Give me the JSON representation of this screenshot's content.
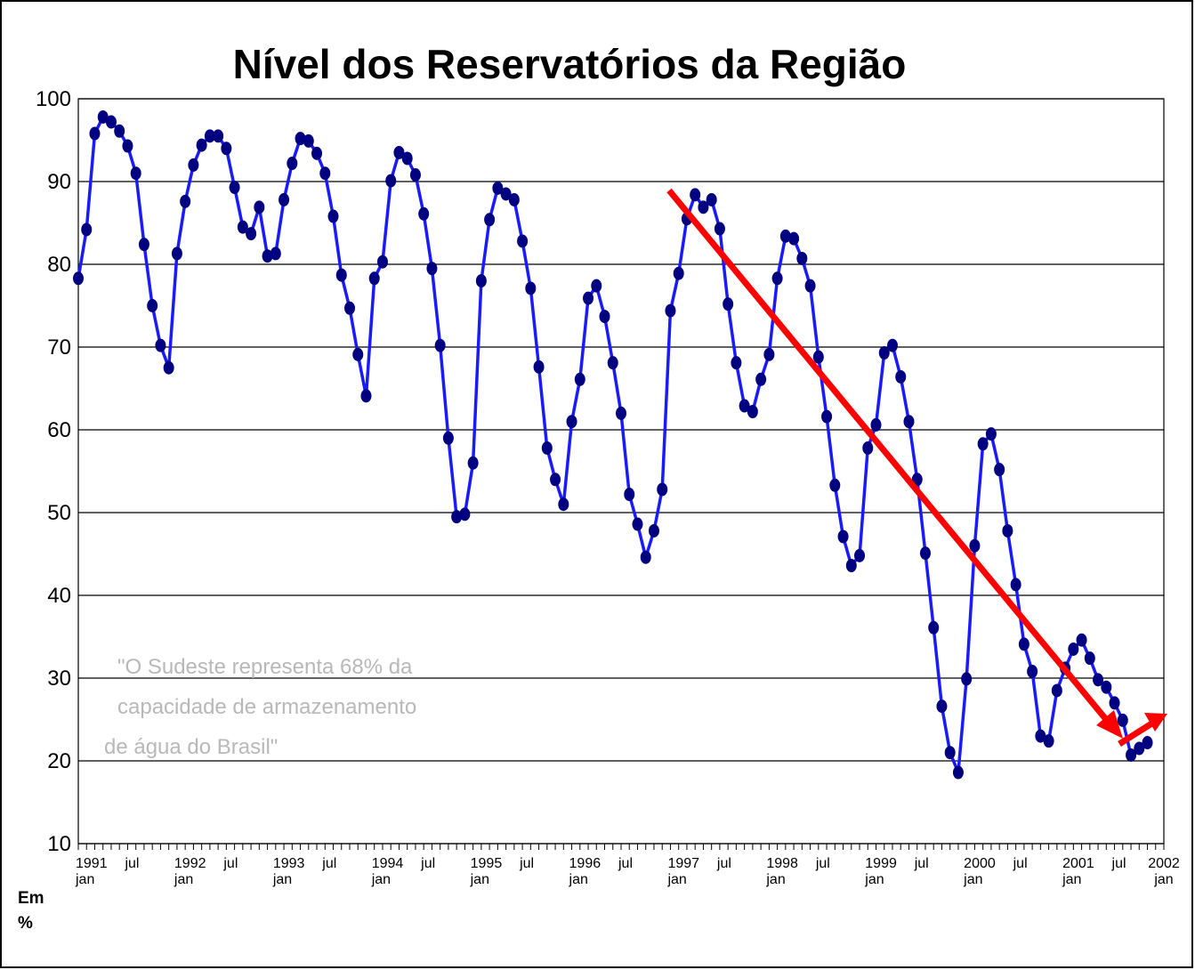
{
  "chart_data": {
    "type": "line",
    "title": "Nível dos Reservatórios da Região",
    "y_axis_label": "Em %",
    "annotation": [
      "\"O Sudeste representa 68% da",
      "capacidade de armazenamento",
      "de água do Brasil\""
    ],
    "categories": [
      "1991 jan",
      null,
      null,
      null,
      null,
      null,
      "jul",
      null,
      null,
      null,
      null,
      null,
      "1992 jan",
      null,
      null,
      null,
      null,
      null,
      "jul",
      null,
      null,
      null,
      null,
      null,
      "1993 jan",
      null,
      null,
      null,
      null,
      null,
      "jul",
      null,
      null,
      null,
      null,
      null,
      "1994 jan",
      null,
      null,
      null,
      null,
      null,
      "jul",
      null,
      null,
      null,
      null,
      null,
      "1995 jan",
      null,
      null,
      null,
      null,
      null,
      "jul",
      null,
      null,
      null,
      null,
      null,
      "1996 jan",
      null,
      null,
      null,
      null,
      null,
      "jul",
      null,
      null,
      null,
      null,
      null,
      "1997 jan",
      null,
      null,
      null,
      null,
      null,
      "jul",
      null,
      null,
      null,
      null,
      null,
      "1998 jan",
      null,
      null,
      null,
      null,
      null,
      "jul",
      null,
      null,
      null,
      null,
      null,
      "1999 jan",
      null,
      null,
      null,
      null,
      null,
      "jul",
      null,
      null,
      null,
      null,
      null,
      "2000 jan",
      null,
      null,
      null,
      null,
      null,
      "jul",
      null,
      null,
      null,
      null,
      null,
      "2001 jan",
      null,
      null,
      null,
      null,
      null,
      "jul",
      null,
      null,
      null,
      null,
      null,
      "2002 jan"
    ],
    "series": [
      {
        "name": "Nível",
        "color": "#1a1aff",
        "marker_color": "#000080",
        "values": [
          78.3,
          84.2,
          95.8,
          97.8,
          97.2,
          96.1,
          94.3,
          91.0,
          82.4,
          75.0,
          70.2,
          67.5,
          81.3,
          87.6,
          92.0,
          94.4,
          95.5,
          95.5,
          94.0,
          89.3,
          84.5,
          83.7,
          86.9,
          81.0,
          81.3,
          87.8,
          92.2,
          95.2,
          94.9,
          93.4,
          91.0,
          85.8,
          78.7,
          74.7,
          69.1,
          64.1,
          78.3,
          80.3,
          90.1,
          93.5,
          92.8,
          90.8,
          86.1,
          79.5,
          70.2,
          59.0,
          49.5,
          49.8,
          56.0,
          78.0,
          85.4,
          89.2,
          88.5,
          87.8,
          82.8,
          77.1,
          67.6,
          57.8,
          54.0,
          51.0,
          61.0,
          66.1,
          75.9,
          77.4,
          73.7,
          68.1,
          62.0,
          52.2,
          48.6,
          44.6,
          47.8,
          52.8,
          74.4,
          78.9,
          85.5,
          88.4,
          86.9,
          87.8,
          84.3,
          75.2,
          68.1,
          62.9,
          62.2,
          66.1,
          69.1,
          78.3,
          83.4,
          83.1,
          80.7,
          77.4,
          68.8,
          61.6,
          53.3,
          47.1,
          43.6,
          44.8,
          57.8,
          60.6,
          69.3,
          70.2,
          66.4,
          61.0,
          54.0,
          45.1,
          36.1,
          26.6,
          21.0,
          18.6,
          29.9,
          46.0,
          58.3,
          59.5,
          55.2,
          47.8,
          41.3,
          34.1,
          30.8,
          23.0,
          22.4,
          28.5,
          31.2,
          33.5,
          34.6,
          32.4,
          29.8,
          28.9,
          27.0,
          24.9,
          20.7,
          21.5,
          22.2,
          null,
          null
        ]
      }
    ],
    "ylim": [
      10,
      100
    ],
    "yticks": [
      10,
      20,
      30,
      40,
      50,
      60,
      70,
      80,
      90,
      100
    ],
    "grid": true
  }
}
